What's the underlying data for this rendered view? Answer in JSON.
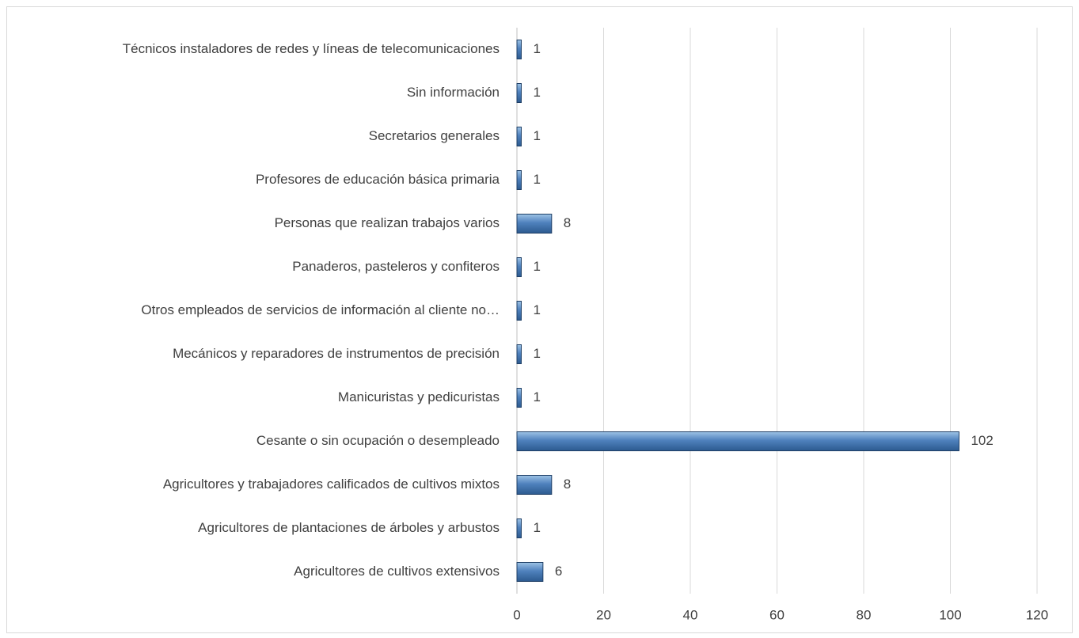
{
  "chart_data": {
    "type": "bar",
    "orientation": "horizontal",
    "categories": [
      "Agricultores de cultivos extensivos",
      "Agricultores de plantaciones de árboles y arbustos",
      "Agricultores y trabajadores calificados de cultivos mixtos",
      "Cesante o sin ocupación o desempleado ",
      "Manicuristas y pedicuristas",
      "Mecánicos y reparadores de instrumentos de precisión",
      "Otros empleados de servicios de información al cliente no…",
      "Panaderos, pasteleros y confiteros",
      "Personas que realizan trabajos varios",
      "Profesores de educación básica primaria",
      "Secretarios generales",
      "Sin información",
      "Técnicos instaladores de redes y líneas de telecomunicaciones"
    ],
    "values": [
      6,
      1,
      8,
      102,
      1,
      1,
      1,
      1,
      8,
      1,
      1,
      1,
      1
    ],
    "color": "#4f81bd",
    "xlim": [
      0,
      120
    ],
    "xticks": [
      0,
      20,
      40,
      60,
      80,
      100,
      120
    ],
    "grid": true
  }
}
